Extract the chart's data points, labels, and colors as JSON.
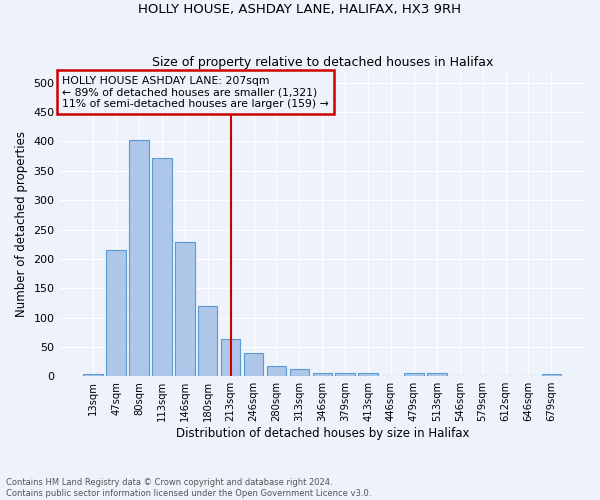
{
  "title1": "HOLLY HOUSE, ASHDAY LANE, HALIFAX, HX3 9RH",
  "title2": "Size of property relative to detached houses in Halifax",
  "xlabel": "Distribution of detached houses by size in Halifax",
  "ylabel": "Number of detached properties",
  "categories": [
    "13sqm",
    "47sqm",
    "80sqm",
    "113sqm",
    "146sqm",
    "180sqm",
    "213sqm",
    "246sqm",
    "280sqm",
    "313sqm",
    "346sqm",
    "379sqm",
    "413sqm",
    "446sqm",
    "479sqm",
    "513sqm",
    "546sqm",
    "579sqm",
    "612sqm",
    "646sqm",
    "679sqm"
  ],
  "values": [
    3,
    215,
    402,
    371,
    228,
    120,
    63,
    39,
    18,
    13,
    6,
    5,
    5,
    1,
    5,
    5,
    1,
    0,
    0,
    1,
    3
  ],
  "bar_color": "#aec6e8",
  "bar_edge_color": "#5b9bd5",
  "vline_x_index": 6,
  "vline_color": "#cc0000",
  "annotation_line1": "HOLLY HOUSE ASHDAY LANE: 207sqm",
  "annotation_line2": "← 89% of detached houses are smaller (1,321)",
  "annotation_line3": "11% of semi-detached houses are larger (159) →",
  "annotation_box_color": "#cc0000",
  "ylim": [
    0,
    520
  ],
  "yticks": [
    0,
    50,
    100,
    150,
    200,
    250,
    300,
    350,
    400,
    450,
    500
  ],
  "footnote1": "Contains HM Land Registry data © Crown copyright and database right 2024.",
  "footnote2": "Contains public sector information licensed under the Open Government Licence v3.0.",
  "bg_color": "#eef2fb",
  "grid_color": "#ffffff"
}
